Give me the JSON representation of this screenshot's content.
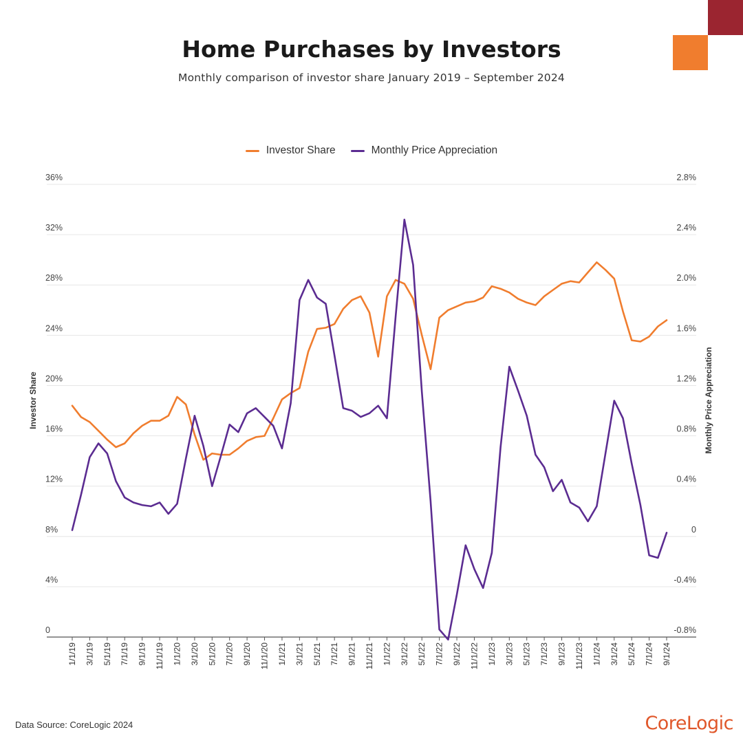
{
  "header": {
    "title": "Home Purchases by Investors",
    "subtitle": "Monthly comparison of investor share January 2019 – September 2024"
  },
  "footer": {
    "source": "Data Source: CoreLogic 2024",
    "brand": "CoreLogic"
  },
  "colors": {
    "investor_share": "#f07d2e",
    "monthly_price_appreciation": "#5b2c91",
    "brand": "#e0572a",
    "corner_dark": "#9b2530",
    "corner_orange": "#f07d2e"
  },
  "chart_data": {
    "type": "line",
    "title": "Home Purchases by Investors",
    "subtitle": "Monthly comparison of investor share January 2019 – September 2024",
    "legend_position": "top-center",
    "grid": true,
    "x_tick_labels": [
      "1/1/19",
      "3/1/19",
      "5/1/19",
      "7/1/19",
      "9/1/19",
      "11/1/19",
      "1/1/20",
      "3/1/20",
      "5/1/20",
      "7/1/20",
      "9/1/20",
      "11/1/20",
      "1/1/21",
      "3/1/21",
      "5/1/21",
      "7/1/21",
      "9/1/21",
      "11/1/21",
      "1/1/22",
      "3/1/22",
      "5/1/22",
      "7/1/22",
      "9/1/22",
      "11/1/22",
      "1/1/23",
      "3/1/23",
      "5/1/23",
      "7/1/23",
      "9/1/23",
      "11/1/23",
      "1/1/24",
      "3/1/24",
      "5/1/24",
      "7/1/24",
      "9/1/24"
    ],
    "x": [
      "1/1/19",
      "2/1/19",
      "3/1/19",
      "4/1/19",
      "5/1/19",
      "6/1/19",
      "7/1/19",
      "8/1/19",
      "9/1/19",
      "10/1/19",
      "11/1/19",
      "12/1/19",
      "1/1/20",
      "2/1/20",
      "3/1/20",
      "4/1/20",
      "5/1/20",
      "6/1/20",
      "7/1/20",
      "8/1/20",
      "9/1/20",
      "10/1/20",
      "11/1/20",
      "12/1/20",
      "1/1/21",
      "2/1/21",
      "3/1/21",
      "4/1/21",
      "5/1/21",
      "6/1/21",
      "7/1/21",
      "8/1/21",
      "9/1/21",
      "10/1/21",
      "11/1/21",
      "12/1/21",
      "1/1/22",
      "2/1/22",
      "3/1/22",
      "4/1/22",
      "5/1/22",
      "6/1/22",
      "7/1/22",
      "8/1/22",
      "9/1/22",
      "10/1/22",
      "11/1/22",
      "12/1/22",
      "1/1/23",
      "2/1/23",
      "3/1/23",
      "4/1/23",
      "5/1/23",
      "6/1/23",
      "7/1/23",
      "8/1/23",
      "9/1/23",
      "10/1/23",
      "11/1/23",
      "12/1/23",
      "1/1/24",
      "2/1/24",
      "3/1/24",
      "4/1/24",
      "5/1/24",
      "6/1/24",
      "7/1/24",
      "8/1/24",
      "9/1/24"
    ],
    "y_left": {
      "label": "Investor Share",
      "ylim": [
        0,
        36
      ],
      "ticks": [
        0,
        4,
        8,
        12,
        16,
        20,
        24,
        28,
        32,
        36
      ],
      "tick_labels": [
        "0",
        "4%",
        "8%",
        "12%",
        "16%",
        "20%",
        "24%",
        "28%",
        "32%",
        "36%"
      ]
    },
    "y_right": {
      "label": "Monthly Price Appreciation",
      "ylim": [
        -0.8,
        2.8
      ],
      "ticks": [
        -0.8,
        -0.4,
        0,
        0.4,
        0.8,
        1.2,
        1.6,
        2.0,
        2.4,
        2.8
      ],
      "tick_labels": [
        "-0.8%",
        "-0.4%",
        "0",
        "0.4%",
        "0.8%",
        "1.2%",
        "1.6%",
        "2.0%",
        "2.4%",
        "2.8%"
      ]
    },
    "series": [
      {
        "name": "Investor Share",
        "axis": "left",
        "values": [
          18.4,
          17.5,
          17.1,
          16.4,
          15.7,
          15.1,
          15.4,
          16.2,
          16.8,
          17.2,
          17.2,
          17.6,
          19.1,
          18.5,
          16.1,
          14.1,
          14.6,
          14.5,
          14.5,
          15.0,
          15.6,
          15.9,
          16.0,
          17.4,
          18.9,
          19.4,
          19.8,
          22.7,
          24.5,
          24.6,
          24.9,
          26.1,
          26.8,
          27.1,
          25.8,
          22.3,
          27.1,
          28.4,
          28.1,
          26.9,
          24.0,
          21.3,
          25.4,
          26.0,
          26.3,
          26.6,
          26.7,
          27.0,
          27.9,
          27.7,
          27.4,
          26.9,
          26.6,
          26.4,
          27.1,
          27.6,
          28.1,
          28.3,
          28.2,
          29.0,
          29.8,
          29.2,
          28.5,
          25.9,
          23.6,
          23.5,
          23.9,
          24.7,
          25.2
        ]
      },
      {
        "name": "Monthly Price Appreciation",
        "axis": "right",
        "values": [
          0.05,
          0.33,
          0.63,
          0.74,
          0.66,
          0.44,
          0.31,
          0.27,
          0.25,
          0.24,
          0.27,
          0.18,
          0.26,
          0.62,
          0.96,
          0.72,
          0.4,
          0.64,
          0.89,
          0.83,
          0.98,
          1.02,
          0.95,
          0.88,
          0.7,
          1.06,
          1.88,
          2.04,
          1.9,
          1.85,
          1.44,
          1.02,
          1.0,
          0.95,
          0.98,
          1.04,
          0.94,
          1.75,
          2.52,
          2.16,
          1.15,
          0.28,
          -0.74,
          -0.82,
          -0.46,
          -0.07,
          -0.26,
          -0.41,
          -0.13,
          0.71,
          1.35,
          1.16,
          0.96,
          0.65,
          0.55,
          0.36,
          0.45,
          0.27,
          0.23,
          0.12,
          0.24,
          0.66,
          1.08,
          0.94,
          0.58,
          0.25,
          -0.15,
          -0.17,
          0.03
        ]
      }
    ]
  }
}
